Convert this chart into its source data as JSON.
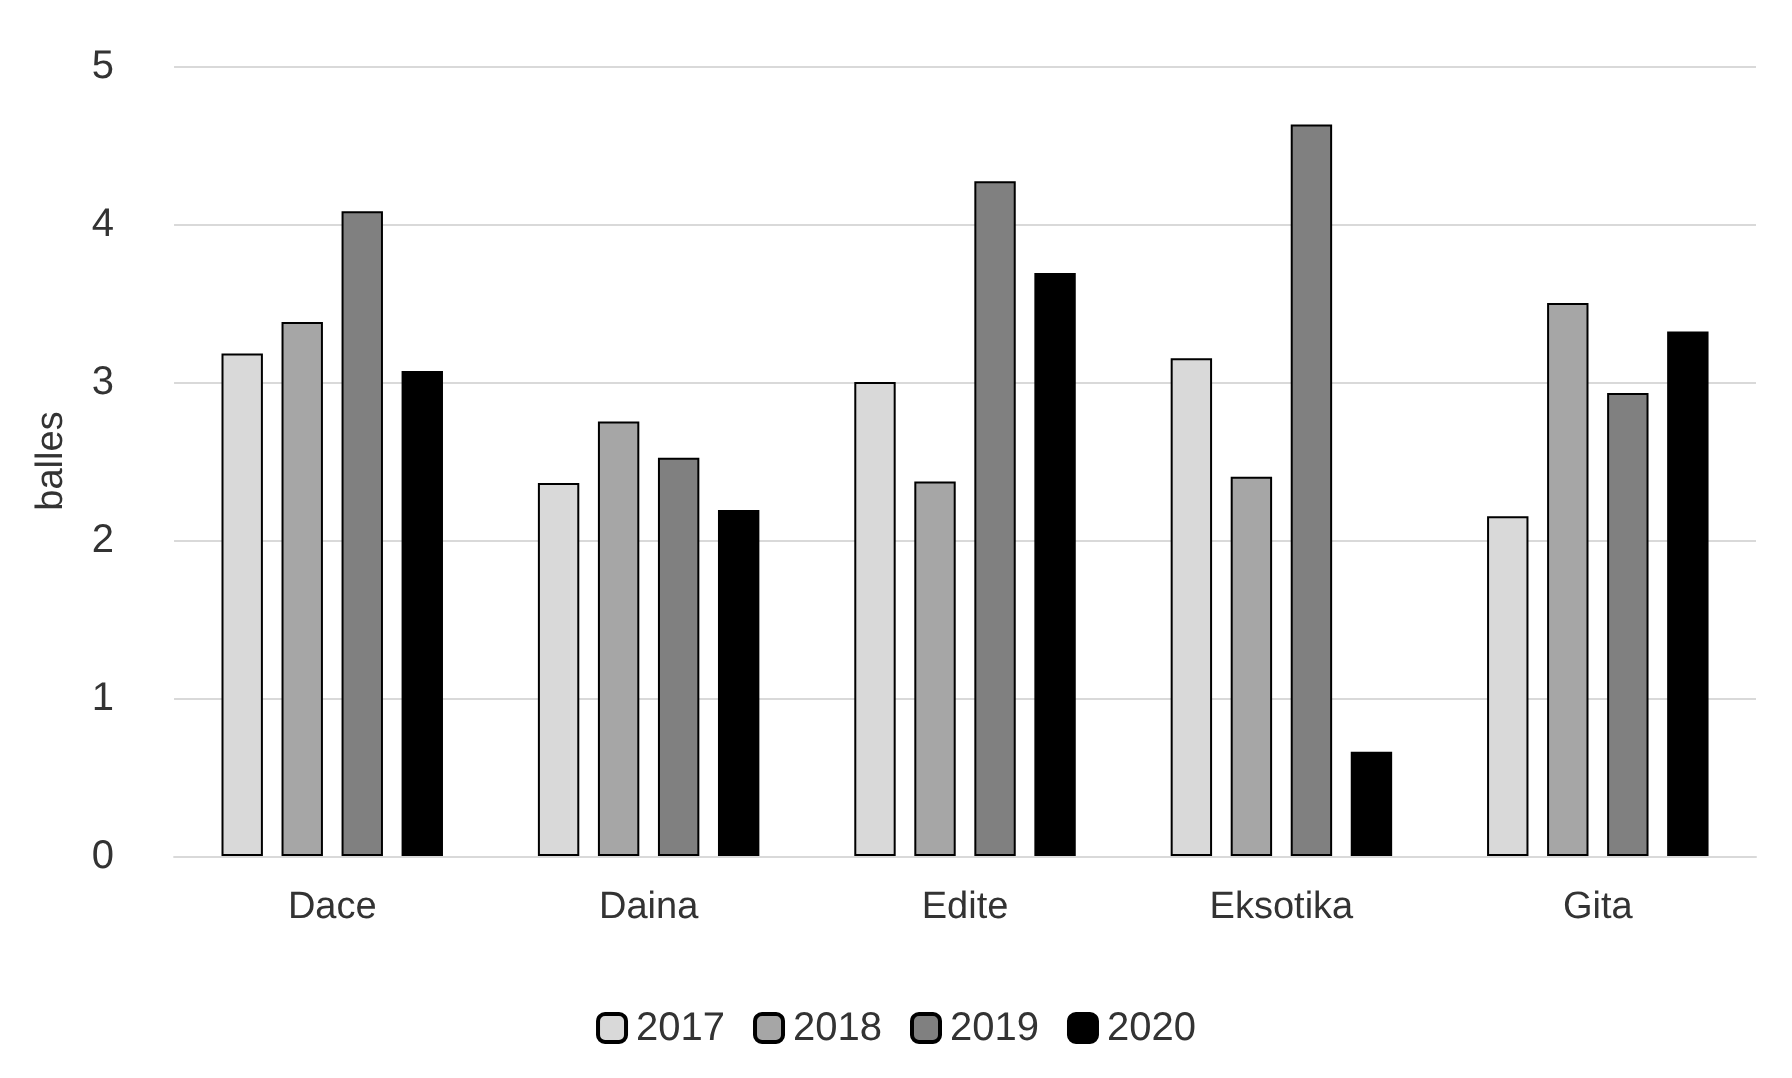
{
  "chart_data": {
    "type": "bar",
    "ylabel": "balles",
    "categories": [
      "Dace",
      "Daina",
      "Edite",
      "Eksotika",
      "Gita"
    ],
    "series": [
      {
        "name": "2017",
        "color": "#d9d9d9",
        "values": [
          3.18,
          2.36,
          3.0,
          3.15,
          2.15
        ]
      },
      {
        "name": "2018",
        "color": "#a6a6a6",
        "values": [
          3.38,
          2.75,
          2.37,
          2.4,
          3.5
        ]
      },
      {
        "name": "2019",
        "color": "#808080",
        "values": [
          4.08,
          2.52,
          4.27,
          4.63,
          2.93
        ]
      },
      {
        "name": "2020",
        "color": "#000000",
        "values": [
          3.07,
          2.19,
          3.69,
          0.66,
          3.32
        ]
      }
    ],
    "ylim": [
      0,
      5
    ],
    "yticks": [
      0,
      1,
      2,
      3,
      4,
      5
    ],
    "grid": "y",
    "legend": "bottom"
  }
}
